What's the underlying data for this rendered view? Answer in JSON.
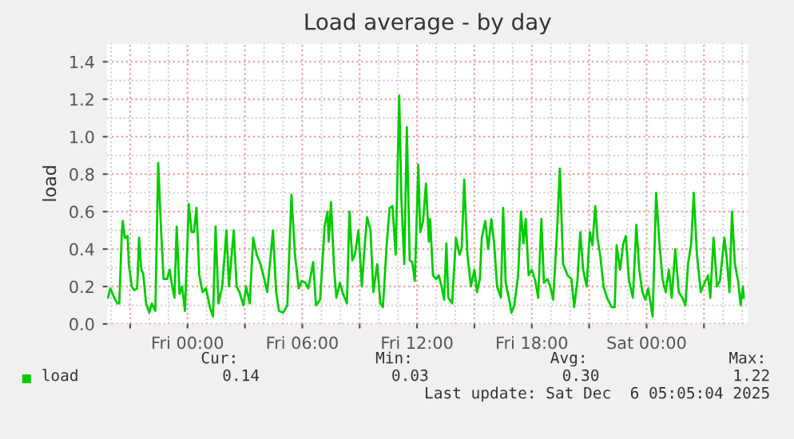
{
  "chart_data": {
    "type": "line",
    "title": "Load average - by day",
    "ylabel": "load",
    "xlim": [
      "2025-12-04T19:48",
      "2025-12-06T05:18"
    ],
    "ylim": [
      0,
      1.5
    ],
    "xticks": [
      {
        "value": "2025-12-04T21:00",
        "label": null
      },
      {
        "value": "2025-12-05T00:00",
        "label": "Fri 00:00"
      },
      {
        "value": "2025-12-05T03:00",
        "label": null
      },
      {
        "value": "2025-12-05T06:00",
        "label": "Fri 06:00"
      },
      {
        "value": "2025-12-05T09:00",
        "label": null
      },
      {
        "value": "2025-12-05T12:00",
        "label": "Fri 12:00"
      },
      {
        "value": "2025-12-05T15:00",
        "label": null
      },
      {
        "value": "2025-12-05T18:00",
        "label": "Fri 18:00"
      },
      {
        "value": "2025-12-05T21:00",
        "label": null
      },
      {
        "value": "2025-12-06T00:00",
        "label": "Sat 00:00"
      },
      {
        "value": "2025-12-06T03:00",
        "label": null
      }
    ],
    "yticks": [
      {
        "value": 0,
        "label": "0.0"
      },
      {
        "value": 0.2,
        "label": "0.2"
      },
      {
        "value": 0.4,
        "label": "0.4"
      },
      {
        "value": 0.6,
        "label": "0.6"
      },
      {
        "value": 0.8,
        "label": "0.8"
      },
      {
        "value": 1.0,
        "label": "1.0"
      },
      {
        "value": 1.2,
        "label": "1.2"
      },
      {
        "value": 1.4,
        "label": "1.4"
      }
    ],
    "grid": true,
    "legend": "bottom",
    "marker": "none",
    "line_style": "solid",
    "annotations": [
      "Cur:",
      "Min:",
      "Avg:",
      "Max:",
      "0.14",
      "0.03",
      "0.30",
      "1.22",
      "Last update: Sat Dec  6 05:05:04 2025"
    ],
    "series": [
      {
        "name": "load",
        "color": "#00cc00",
        "x": [
          "2025-12-04T19:50",
          "2025-12-04T19:58",
          "2025-12-04T20:10",
          "2025-12-04T20:20",
          "2025-12-04T20:26",
          "2025-12-04T20:34",
          "2025-12-04T20:37",
          "2025-12-04T20:43",
          "2025-12-04T20:52",
          "2025-12-04T20:56",
          "2025-12-04T21:05",
          "2025-12-04T21:13",
          "2025-12-04T21:22",
          "2025-12-04T21:28",
          "2025-12-04T21:35",
          "2025-12-04T21:41",
          "2025-12-04T21:50",
          "2025-12-04T22:00",
          "2025-12-04T22:08",
          "2025-12-04T22:19",
          "2025-12-04T22:28",
          "2025-12-04T22:37",
          "2025-12-04T22:45",
          "2025-12-04T22:56",
          "2025-12-04T23:04",
          "2025-12-04T23:10",
          "2025-12-04T23:19",
          "2025-12-04T23:26",
          "2025-12-04T23:35",
          "2025-12-04T23:43",
          "2025-12-04T23:52",
          "2025-12-05T00:04",
          "2025-12-05T00:13",
          "2025-12-05T00:20",
          "2025-12-05T00:28",
          "2025-12-05T00:37",
          "2025-12-05T00:47",
          "2025-12-05T00:58",
          "2025-12-05T01:10",
          "2025-12-05T01:20",
          "2025-12-05T01:28",
          "2025-12-05T01:37",
          "2025-12-05T01:49",
          "2025-12-05T02:02",
          "2025-12-05T02:10",
          "2025-12-05T02:25",
          "2025-12-05T02:34",
          "2025-12-05T02:43",
          "2025-12-05T02:55",
          "2025-12-05T03:04",
          "2025-12-05T03:15",
          "2025-12-05T03:26",
          "2025-12-05T03:37",
          "2025-12-05T03:49",
          "2025-12-05T04:02",
          "2025-12-05T04:10",
          "2025-12-05T04:28",
          "2025-12-05T04:38",
          "2025-12-05T04:47",
          "2025-12-05T05:00",
          "2025-12-05T05:13",
          "2025-12-05T05:26",
          "2025-12-05T05:37",
          "2025-12-05T05:49",
          "2025-12-05T05:58",
          "2025-12-05T06:10",
          "2025-12-05T06:19",
          "2025-12-05T06:34",
          "2025-12-05T06:43",
          "2025-12-05T06:56",
          "2025-12-05T07:10",
          "2025-12-05T07:19",
          "2025-12-05T07:23",
          "2025-12-05T07:30",
          "2025-12-05T07:40",
          "2025-12-05T07:47",
          "2025-12-05T07:58",
          "2025-12-05T08:08",
          "2025-12-05T08:20",
          "2025-12-05T08:28",
          "2025-12-05T08:37",
          "2025-12-05T08:45",
          "2025-12-05T08:56",
          "2025-12-05T09:07",
          "2025-12-05T09:15",
          "2025-12-05T09:23",
          "2025-12-05T09:34",
          "2025-12-05T09:43",
          "2025-12-05T09:55",
          "2025-12-05T10:05",
          "2025-12-05T10:13",
          "2025-12-05T10:25",
          "2025-12-05T10:34",
          "2025-12-05T10:43",
          "2025-12-05T10:53",
          "2025-12-05T11:04",
          "2025-12-05T11:11",
          "2025-12-05T11:20",
          "2025-12-05T11:28",
          "2025-12-05T11:37",
          "2025-12-05T11:45",
          "2025-12-05T11:53",
          "2025-12-05T12:04",
          "2025-12-05T12:10",
          "2025-12-05T12:19",
          "2025-12-05T12:28",
          "2025-12-05T12:37",
          "2025-12-05T12:41",
          "2025-12-05T12:50",
          "2025-12-05T13:00",
          "2025-12-05T13:08",
          "2025-12-05T13:17",
          "2025-12-05T13:25",
          "2025-12-05T13:32",
          "2025-12-05T13:38",
          "2025-12-05T13:50",
          "2025-12-05T14:02",
          "2025-12-05T14:13",
          "2025-12-05T14:20",
          "2025-12-05T14:28",
          "2025-12-05T14:38",
          "2025-12-05T14:49",
          "2025-12-05T15:00",
          "2025-12-05T15:08",
          "2025-12-05T15:17",
          "2025-12-05T15:23",
          "2025-12-05T15:34",
          "2025-12-05T15:43",
          "2025-12-05T15:53",
          "2025-12-05T16:02",
          "2025-12-05T16:11",
          "2025-12-05T16:23",
          "2025-12-05T16:30",
          "2025-12-05T16:38",
          "2025-12-05T16:49",
          "2025-12-05T16:56",
          "2025-12-05T17:05",
          "2025-12-05T17:17",
          "2025-12-05T17:26",
          "2025-12-05T17:34",
          "2025-12-05T17:41",
          "2025-12-05T17:50",
          "2025-12-05T18:00",
          "2025-12-05T18:11",
          "2025-12-05T18:20",
          "2025-12-05T18:30",
          "2025-12-05T18:38",
          "2025-12-05T18:49",
          "2025-12-05T18:58",
          "2025-12-05T19:07",
          "2025-12-05T19:19",
          "2025-12-05T19:28",
          "2025-12-05T19:38",
          "2025-12-05T19:52",
          "2025-12-05T20:04",
          "2025-12-05T20:13",
          "2025-12-05T20:23",
          "2025-12-05T20:32",
          "2025-12-05T20:41",
          "2025-12-05T20:52",
          "2025-12-05T21:02",
          "2025-12-05T21:10",
          "2025-12-05T21:19",
          "2025-12-05T21:26",
          "2025-12-05T21:35",
          "2025-12-05T21:45",
          "2025-12-05T21:56",
          "2025-12-05T22:10",
          "2025-12-05T22:20",
          "2025-12-05T22:26",
          "2025-12-05T22:37",
          "2025-12-05T22:47",
          "2025-12-05T22:55",
          "2025-12-05T23:05",
          "2025-12-05T23:17",
          "2025-12-05T23:28",
          "2025-12-05T23:37",
          "2025-12-05T23:47",
          "2025-12-05T23:56",
          "2025-12-06T00:05",
          "2025-12-06T00:19",
          "2025-12-06T00:30",
          "2025-12-06T00:40",
          "2025-12-06T00:50",
          "2025-12-06T01:00",
          "2025-12-06T01:10",
          "2025-12-06T01:19",
          "2025-12-06T01:30",
          "2025-12-06T01:41",
          "2025-12-06T01:52",
          "2025-12-06T02:02",
          "2025-12-06T02:10",
          "2025-12-06T02:20",
          "2025-12-06T02:28",
          "2025-12-06T02:38",
          "2025-12-06T02:50",
          "2025-12-06T03:02",
          "2025-12-06T03:13",
          "2025-12-06T03:20",
          "2025-12-06T03:30",
          "2025-12-06T03:41",
          "2025-12-06T03:50",
          "2025-12-06T04:04",
          "2025-12-06T04:11",
          "2025-12-06T04:20",
          "2025-12-06T04:28",
          "2025-12-06T04:37",
          "2025-12-06T04:47",
          "2025-12-06T04:55",
          "2025-12-06T05:02",
          "2025-12-06T05:05"
        ],
        "values": [
          0.14,
          0.19,
          0.14,
          0.11,
          0.11,
          0.49,
          0.55,
          0.46,
          0.47,
          0.32,
          0.2,
          0.18,
          0.19,
          0.46,
          0.29,
          0.27,
          0.11,
          0.06,
          0.11,
          0.07,
          0.86,
          0.5,
          0.24,
          0.24,
          0.29,
          0.22,
          0.14,
          0.52,
          0.16,
          0.2,
          0.07,
          0.64,
          0.49,
          0.49,
          0.62,
          0.26,
          0.17,
          0.19,
          0.09,
          0.04,
          0.52,
          0.11,
          0.2,
          0.5,
          0.2,
          0.5,
          0.2,
          0.17,
          0.1,
          0.2,
          0.11,
          0.46,
          0.37,
          0.32,
          0.23,
          0.17,
          0.5,
          0.17,
          0.07,
          0.06,
          0.1,
          0.69,
          0.37,
          0.19,
          0.23,
          0.22,
          0.19,
          0.33,
          0.1,
          0.13,
          0.52,
          0.6,
          0.44,
          0.65,
          0.29,
          0.14,
          0.22,
          0.16,
          0.11,
          0.6,
          0.34,
          0.37,
          0.5,
          0.2,
          0.4,
          0.57,
          0.5,
          0.17,
          0.32,
          0.11,
          0.09,
          0.43,
          0.62,
          0.63,
          0.37,
          1.22,
          0.66,
          0.32,
          1.05,
          0.34,
          0.33,
          0.23,
          0.85,
          0.49,
          0.55,
          0.75,
          0.44,
          0.56,
          0.26,
          0.24,
          0.26,
          0.2,
          0.13,
          0.43,
          0.14,
          0.11,
          0.46,
          0.37,
          0.4,
          0.77,
          0.37,
          0.2,
          0.29,
          0.17,
          0.24,
          0.46,
          0.55,
          0.4,
          0.56,
          0.43,
          0.2,
          0.14,
          0.62,
          0.22,
          0.13,
          0.06,
          0.1,
          0.26,
          0.6,
          0.43,
          0.56,
          0.26,
          0.29,
          0.23,
          0.14,
          0.56,
          0.22,
          0.24,
          0.2,
          0.13,
          0.49,
          0.83,
          0.32,
          0.26,
          0.24,
          0.09,
          0.23,
          0.49,
          0.29,
          0.2,
          0.49,
          0.42,
          0.63,
          0.46,
          0.36,
          0.2,
          0.14,
          0.09,
          0.09,
          0.42,
          0.29,
          0.43,
          0.47,
          0.23,
          0.14,
          0.53,
          0.29,
          0.17,
          0.13,
          0.19,
          0.04,
          0.7,
          0.44,
          0.24,
          0.17,
          0.29,
          0.14,
          0.4,
          0.17,
          0.14,
          0.1,
          0.32,
          0.43,
          0.7,
          0.37,
          0.17,
          0.22,
          0.26,
          0.14,
          0.46,
          0.2,
          0.23,
          0.46,
          0.36,
          0.17,
          0.6,
          0.32,
          0.23,
          0.1,
          0.2,
          0.14
        ]
      }
    ]
  }
}
